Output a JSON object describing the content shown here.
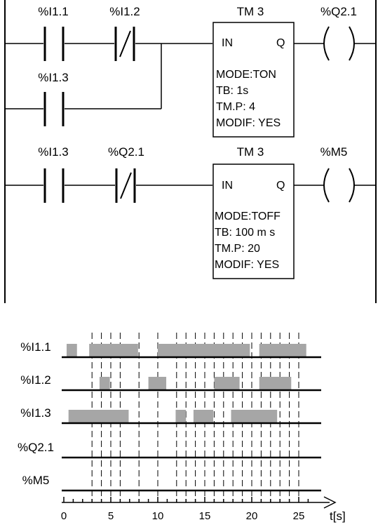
{
  "ladder": {
    "rung1": {
      "contact_a": "%I1.1",
      "contact_b": "%I1.2",
      "contact_parallel": "%I1.3",
      "timer_title": "TM 3",
      "timer_in": "IN",
      "timer_q": "Q",
      "timer_params": [
        "MODE:TON",
        "TB: 1s",
        "TM.P: 4",
        "MODIF: YES"
      ],
      "coil": "%Q2.1"
    },
    "rung2": {
      "contact_a": "%I1.3",
      "contact_b": "%Q2.1",
      "timer_title": "TM 3",
      "timer_in": "IN",
      "timer_q": "Q",
      "timer_params": [
        "MODE:TOFF",
        "TB: 100 m s",
        "TM.P: 20",
        "MODIF: YES"
      ],
      "coil": "%M5"
    }
  },
  "timing": {
    "signals": [
      "%I1.1",
      "%I1.2",
      "%I1.3",
      "%Q2.1",
      "%M5"
    ],
    "axis_label": "t[s]",
    "tick_labels": [
      "0",
      "5",
      "10",
      "15",
      "20",
      "25"
    ],
    "tick_values": [
      0,
      5,
      10,
      15,
      20,
      25
    ],
    "marker_times": [
      3,
      4,
      5,
      6,
      8,
      10,
      12,
      13,
      14,
      15,
      16,
      17,
      18,
      19,
      20,
      21,
      22,
      23,
      24,
      25
    ],
    "pulses": {
      "%I1.1": [
        [
          0.3,
          1.4
        ],
        [
          2.7,
          7.9
        ],
        [
          10.0,
          19.8
        ],
        [
          20.8,
          25.8
        ]
      ],
      "%I1.2": [
        [
          3.8,
          4.9
        ],
        [
          9.0,
          10.9
        ],
        [
          16.0,
          18.7
        ],
        [
          20.8,
          24.2
        ]
      ],
      "%I1.3": [
        [
          0.5,
          6.9
        ],
        [
          11.9,
          13.0
        ],
        [
          13.8,
          15.9
        ],
        [
          17.8,
          22.7
        ]
      ],
      "%Q2.1": [],
      "%M5": []
    },
    "pulse_color": "#a6a6a6"
  }
}
